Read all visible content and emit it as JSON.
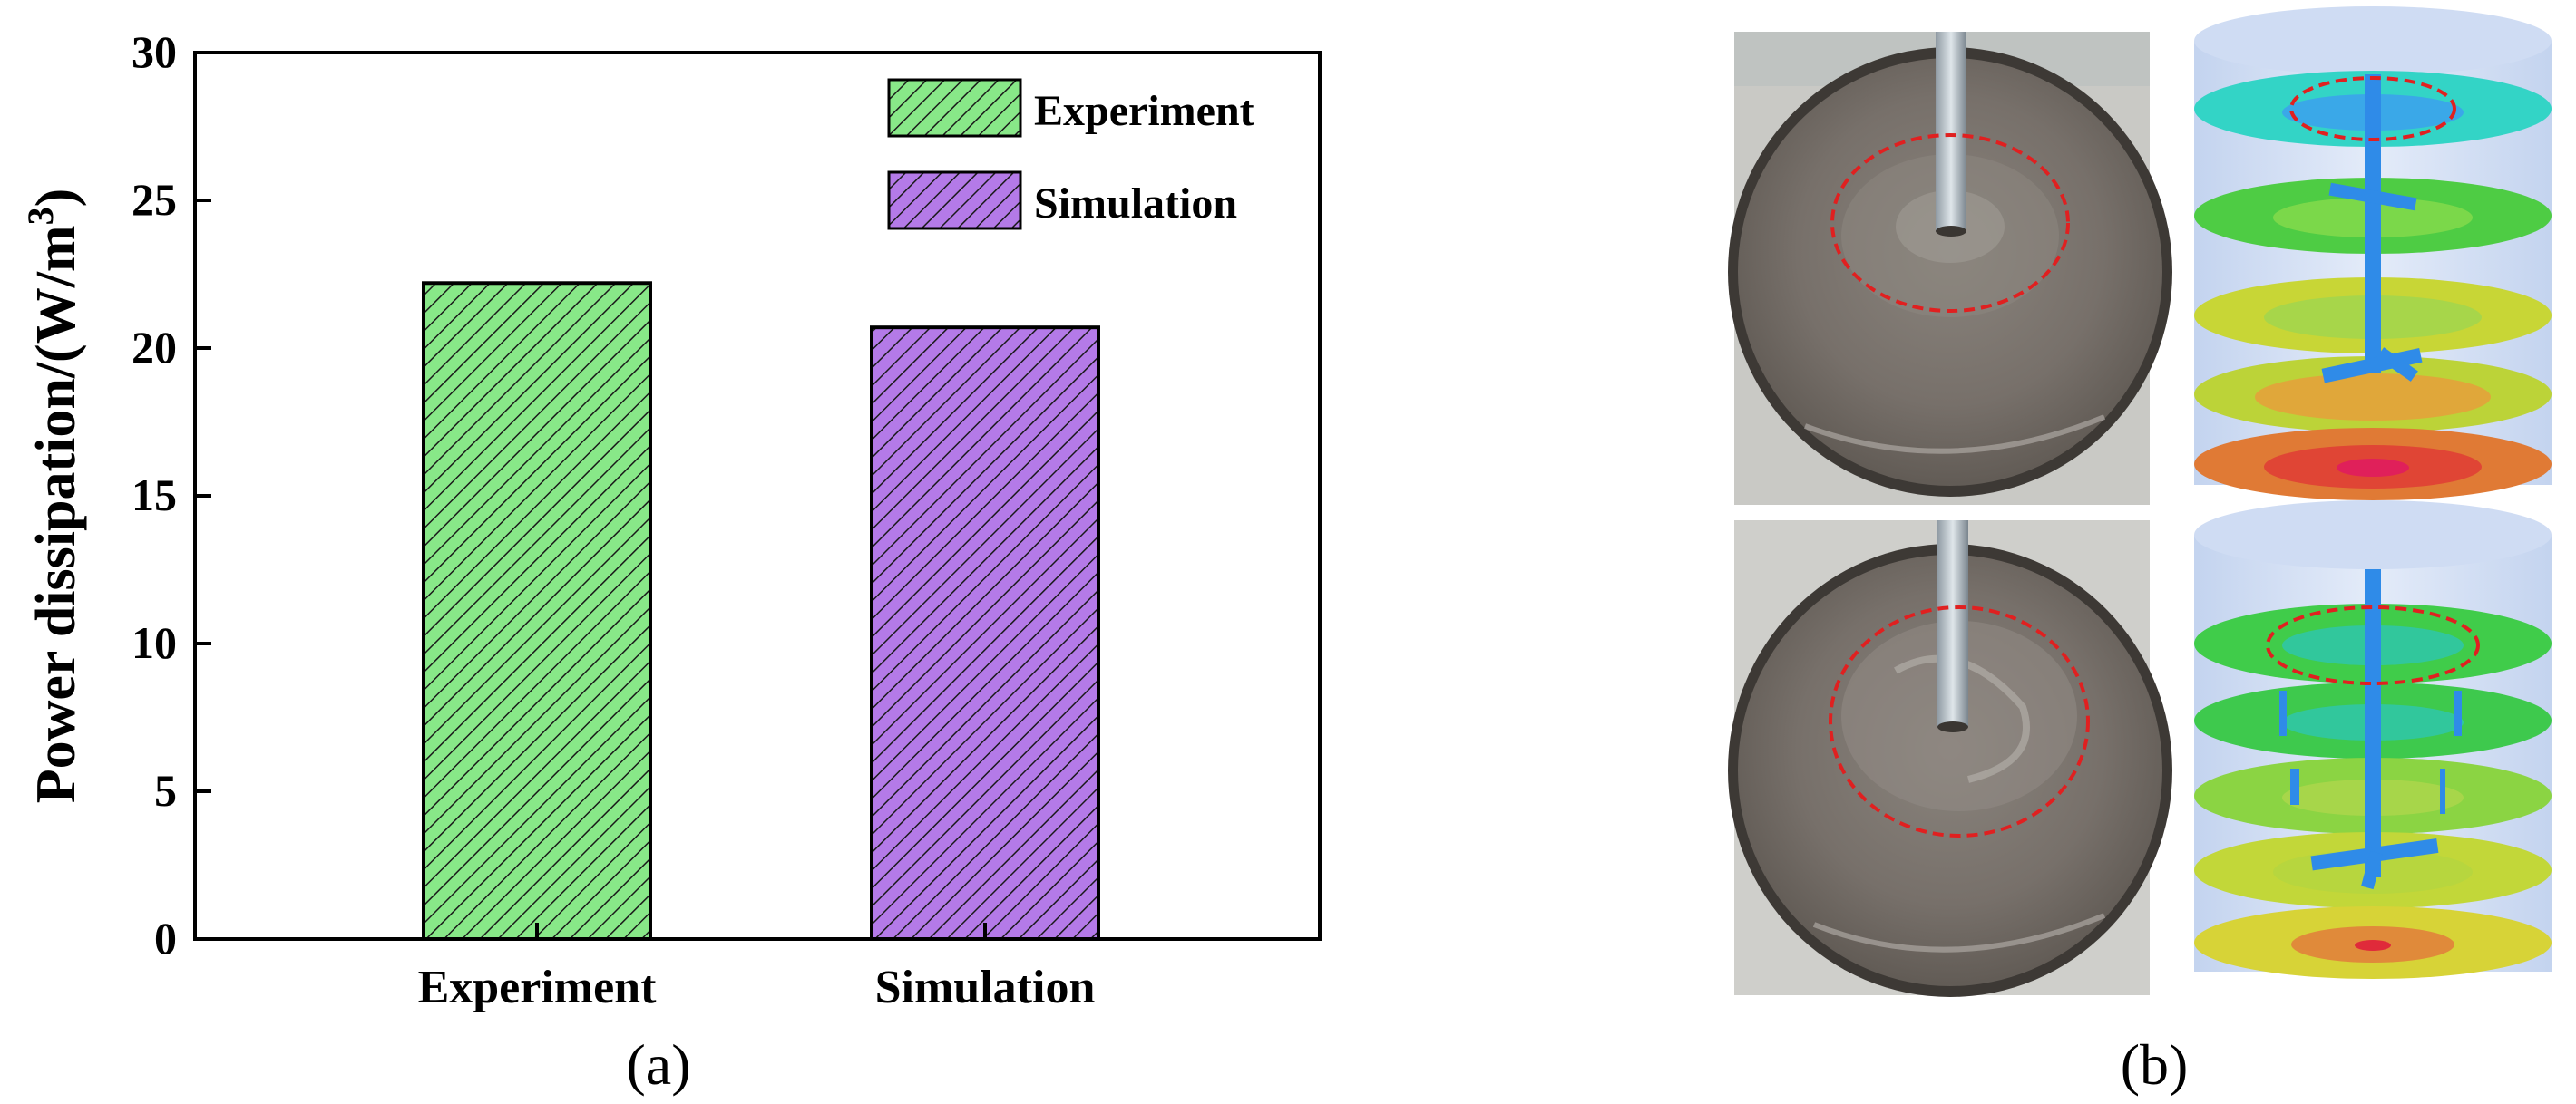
{
  "panel_a_label": "(a)",
  "panel_b_label": "(b)",
  "chart_data": {
    "type": "bar",
    "categories": [
      "Experiment",
      "Simulation"
    ],
    "values": [
      22.2,
      20.7
    ],
    "colors": [
      "#88e888",
      "#b47ae8"
    ],
    "ylabel": "Power dissipation/(W/m³)",
    "ylabel_main": "Power dissipation/(W/m",
    "ylabel_sup": "3",
    "ylabel_end": ")",
    "ylim": [
      0,
      30
    ],
    "yticks": [
      "0",
      "5",
      "10",
      "15",
      "20",
      "25",
      "30"
    ],
    "legend": {
      "position": "top-right",
      "entries": [
        {
          "label": "Experiment",
          "color": "#88e888"
        },
        {
          "label": "Simulation",
          "color": "#b47ae8"
        }
      ]
    }
  },
  "photos": {
    "top": {
      "description_icon": "stirred-tank-photo-icon"
    },
    "bottom": {
      "description_icon": "stirred-tank-photo-icon"
    }
  },
  "colors": {
    "annotation": "#e02020",
    "impeller": "#2f8be8",
    "liquid": "#7c756e"
  }
}
